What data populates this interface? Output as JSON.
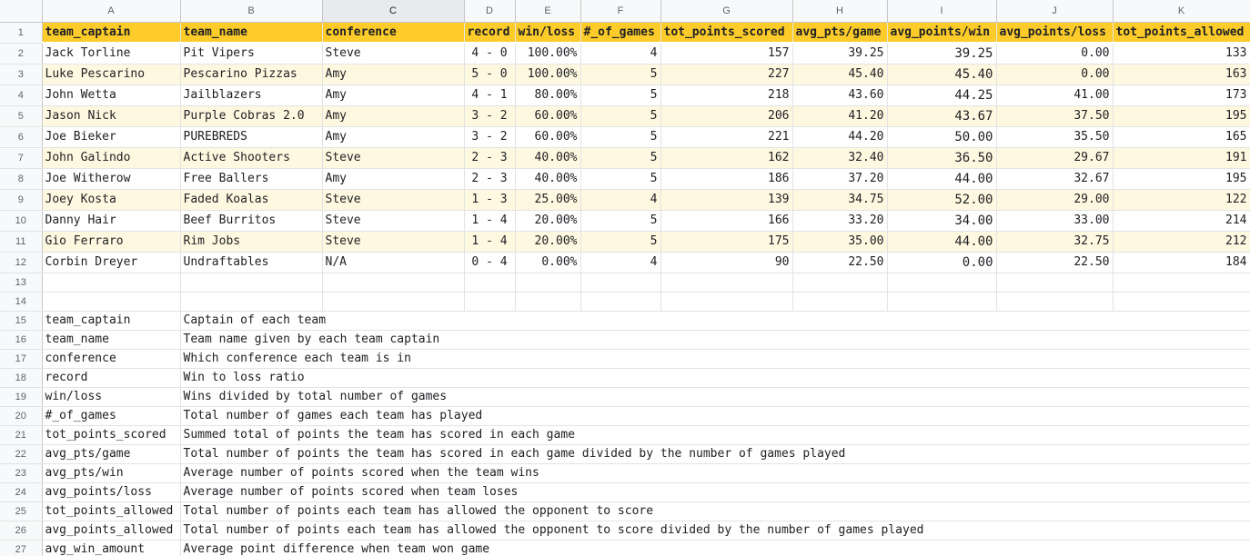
{
  "columns": [
    "A",
    "B",
    "C",
    "D",
    "E",
    "F",
    "G",
    "H",
    "I",
    "J",
    "K"
  ],
  "selected_column": "C",
  "header_row": {
    "row_number": "1",
    "cells": [
      "team_captain",
      "team_name",
      "conference",
      "record",
      "win/loss",
      "#_of_games",
      "tot_points_scored",
      "avg_pts/game",
      "avg_points/win",
      "avg_points/loss",
      "tot_points_allowed"
    ]
  },
  "rows": [
    {
      "n": "2",
      "cells": [
        "Jack Torline",
        "Pit Vipers",
        "Steve",
        "4 - 0",
        "100.00%",
        "4",
        "157",
        "39.25",
        "39.25",
        "0.00",
        "133"
      ]
    },
    {
      "n": "3",
      "cells": [
        "Luke Pescarino",
        "Pescarino Pizzas",
        "Amy",
        "5 - 0",
        "100.00%",
        "5",
        "227",
        "45.40",
        "45.40",
        "0.00",
        "163"
      ]
    },
    {
      "n": "4",
      "cells": [
        "John Wetta",
        "Jailblazers",
        "Amy",
        "4 - 1",
        "80.00%",
        "5",
        "218",
        "43.60",
        "44.25",
        "41.00",
        "173"
      ]
    },
    {
      "n": "5",
      "cells": [
        "Jason Nick",
        "Purple Cobras 2.0",
        "Amy",
        "3 - 2",
        "60.00%",
        "5",
        "206",
        "41.20",
        "43.67",
        "37.50",
        "195"
      ]
    },
    {
      "n": "6",
      "cells": [
        "Joe Bieker",
        "PUREBREDS",
        "Amy",
        "3 - 2",
        "60.00%",
        "5",
        "221",
        "44.20",
        "50.00",
        "35.50",
        "165"
      ]
    },
    {
      "n": "7",
      "cells": [
        "John Galindo",
        "Active Shooters",
        "Steve",
        "2 - 3",
        "40.00%",
        "5",
        "162",
        "32.40",
        "36.50",
        "29.67",
        "191"
      ]
    },
    {
      "n": "8",
      "cells": [
        "Joe Witherow",
        "Free Ballers",
        "Amy",
        "2 - 3",
        "40.00%",
        "5",
        "186",
        "37.20",
        "44.00",
        "32.67",
        "195"
      ]
    },
    {
      "n": "9",
      "cells": [
        "Joey Kosta",
        "Faded Koalas",
        "Steve",
        "1 - 3",
        "25.00%",
        "4",
        "139",
        "34.75",
        "52.00",
        "29.00",
        "122"
      ]
    },
    {
      "n": "10",
      "cells": [
        "Danny Hair",
        "Beef Burritos",
        "Steve",
        "1 - 4",
        "20.00%",
        "5",
        "166",
        "33.20",
        "34.00",
        "33.00",
        "214"
      ]
    },
    {
      "n": "11",
      "cells": [
        "Gio Ferraro",
        "Rim Jobs",
        "Steve",
        "1 - 4",
        "20.00%",
        "5",
        "175",
        "35.00",
        "44.00",
        "32.75",
        "212"
      ]
    },
    {
      "n": "12",
      "cells": [
        "Corbin Dreyer",
        "Undraftables",
        "N/A",
        "0 - 4",
        "0.00%",
        "4",
        "90",
        "22.50",
        "0.00",
        "22.50",
        "184"
      ]
    }
  ],
  "blank_rows": [
    "13",
    "14"
  ],
  "definitions": [
    {
      "n": "15",
      "term": "team_captain",
      "desc": "Captain of each team"
    },
    {
      "n": "16",
      "term": "team_name",
      "desc": "Team name given by each team captain"
    },
    {
      "n": "17",
      "term": "conference",
      "desc": "Which conference each team is in"
    },
    {
      "n": "18",
      "term": "record",
      "desc": "Win to loss ratio"
    },
    {
      "n": "19",
      "term": "win/loss",
      "desc": "Wins divided by total number of games"
    },
    {
      "n": "20",
      "term": "#_of_games",
      "desc": "Total number of games each team has played"
    },
    {
      "n": "21",
      "term": "tot_points_scored",
      "desc": "Summed total of points the team has scored in each game"
    },
    {
      "n": "22",
      "term": "avg_pts/game",
      "desc": "Total number of points the team has scored in each game divided by the number of games played"
    },
    {
      "n": "23",
      "term": "avg_pts/win",
      "desc": "Average number of points scored when the team wins"
    },
    {
      "n": "24",
      "term": "avg_points/loss",
      "desc": "Average number of points scored when team loses"
    },
    {
      "n": "25",
      "term": "tot_points_allowed",
      "desc": "Total number of points each team has allowed the opponent to score"
    },
    {
      "n": "26",
      "term": "avg_points_allowed",
      "desc": "Total number of points each team has allowed the opponent to score divided by the number of games played"
    },
    {
      "n": "27",
      "term": "avg_win_amount",
      "desc": "Average point difference when team won game"
    }
  ],
  "colors": {
    "header_fill": "#fdcc2a",
    "band_fill": "#fff8e1"
  }
}
